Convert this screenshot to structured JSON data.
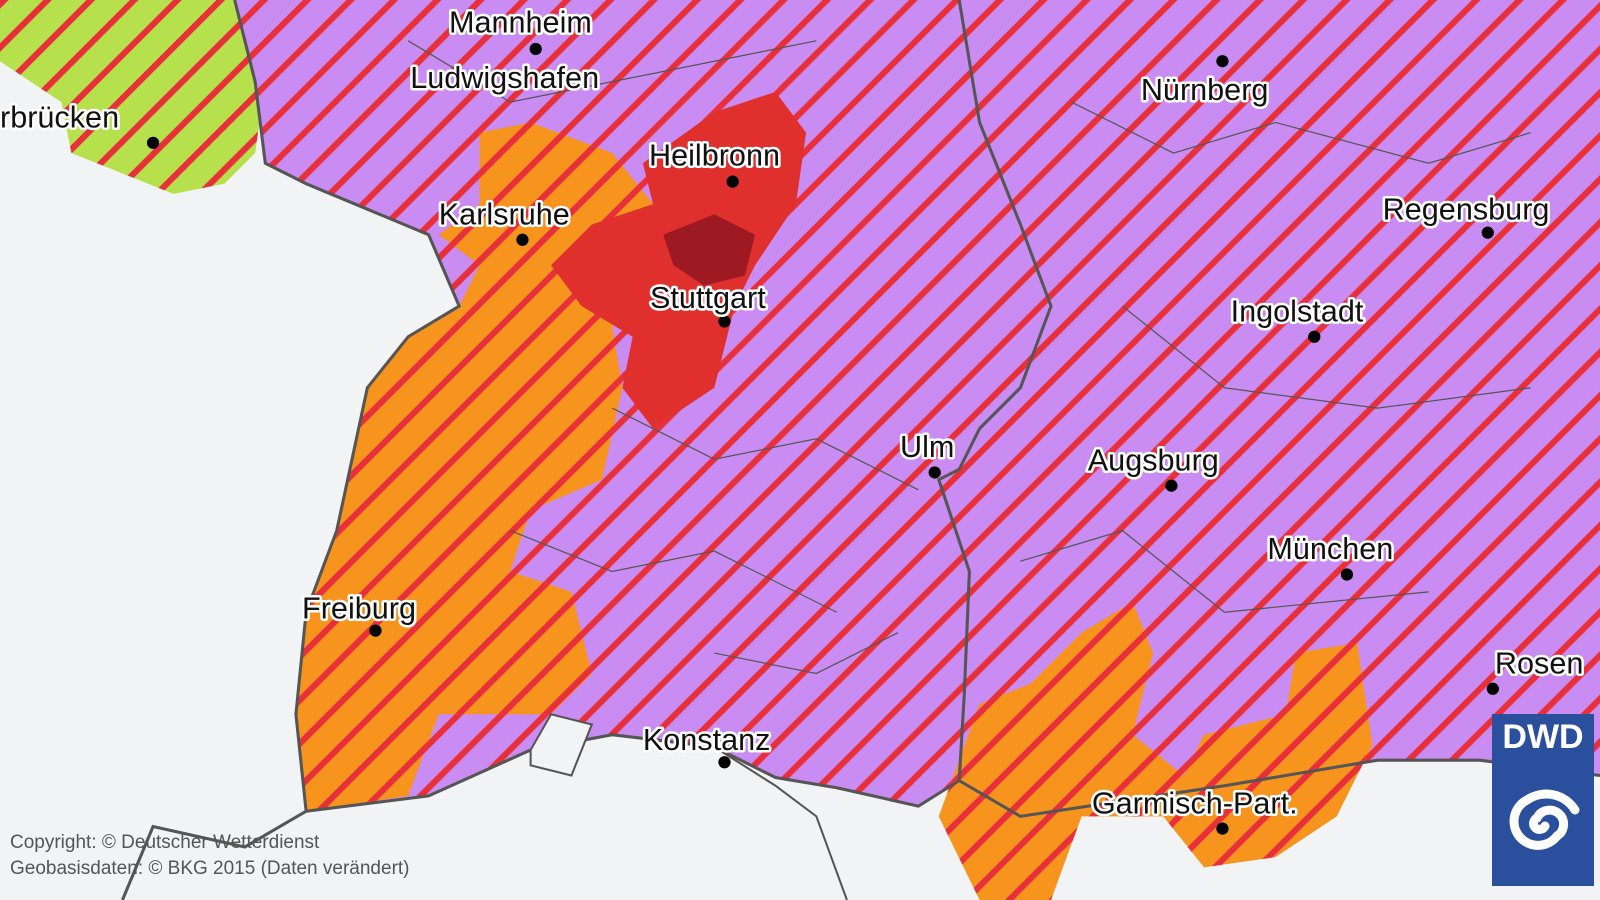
{
  "map": {
    "colors": {
      "background": "#f2f3f4",
      "warning_purple": "#c98cf2",
      "warning_orange": "#f7941d",
      "warning_red": "#e0302e",
      "warning_darkred": "#9e1a22",
      "warning_green": "#b6e04c",
      "hatch_red": "#e8303a",
      "borders": "#555555"
    },
    "cities": [
      {
        "name": "Mannheim"
      },
      {
        "name": "Ludwigshafen"
      },
      {
        "name": "rbrücken"
      },
      {
        "name": "Nürnberg"
      },
      {
        "name": "Heilbronn"
      },
      {
        "name": "Karlsruhe"
      },
      {
        "name": "Stuttgart"
      },
      {
        "name": "Regensburg"
      },
      {
        "name": "Ingolstadt"
      },
      {
        "name": "Ulm"
      },
      {
        "name": "Augsburg"
      },
      {
        "name": "München"
      },
      {
        "name": "Freiburg"
      },
      {
        "name": "Konstanz"
      },
      {
        "name": "Rosen"
      },
      {
        "name": "Garmisch-Part."
      }
    ]
  },
  "copyright": {
    "line1": "Copyright: © Deutscher Wetterdienst",
    "line2": "Geobasisdaten: © BKG 2015 (Daten verändert)"
  },
  "logo": {
    "text": "DWD",
    "icon": "spiral-icon"
  }
}
